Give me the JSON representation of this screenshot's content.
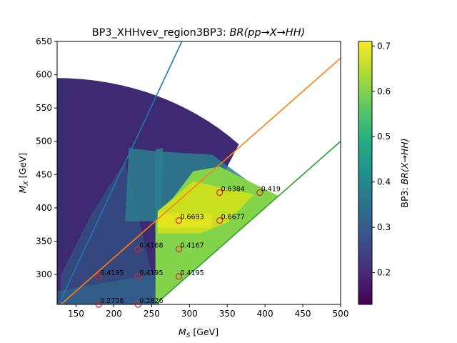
{
  "chart_data": {
    "type": "heatmap",
    "title": "BP3_XHHvev_region3BP3: BR(pp→X→HH)",
    "title_prefix": "BP3_XHHvev_region3BP3: ",
    "title_math": "BR(pp→X→HH)",
    "xlabel": "M_S [GeV]",
    "xlabel_main": "M",
    "xlabel_sub": "S",
    "xlabel_unit": " [GeV]",
    "ylabel": "M_X [GeV]",
    "ylabel_main": "M",
    "ylabel_sub": "X",
    "ylabel_unit": " [GeV]",
    "xlim": [
      125,
      500
    ],
    "ylim": [
      255,
      650
    ],
    "xticks": [
      "150",
      "200",
      "250",
      "300",
      "350",
      "400",
      "450",
      "500"
    ],
    "yticks": [
      "300",
      "350",
      "400",
      "450",
      "500",
      "550",
      "600",
      "650"
    ],
    "colorbar": {
      "label": "BP3: BR(X→HH)",
      "label_prefix": "BP3: ",
      "label_math": "BR(X→HH)",
      "range": [
        0.13,
        0.71
      ],
      "ticks": [
        "0.2",
        "0.3",
        "0.4",
        "0.5",
        "0.6",
        "0.7"
      ],
      "colormap": "viridis"
    },
    "lines": [
      {
        "color": "#1f77b4",
        "x": [
          125,
          290
        ],
        "y": [
          250,
          650
        ]
      },
      {
        "color": "#ff7f0e",
        "x": [
          125,
          500
        ],
        "y": [
          250,
          625
        ]
      },
      {
        "color": "#2ca02c",
        "x": [
          250,
          500
        ],
        "y": [
          250,
          500
        ]
      }
    ],
    "points": [
      {
        "x": 180,
        "y": 255,
        "label": "0.2756"
      },
      {
        "x": 232,
        "y": 255,
        "label": "0.2826"
      },
      {
        "x": 180,
        "y": 297,
        "label": "0.4195"
      },
      {
        "x": 232,
        "y": 297,
        "label": "0.4195"
      },
      {
        "x": 286,
        "y": 297,
        "label": "0.4195"
      },
      {
        "x": 232,
        "y": 338,
        "label": "0.4168"
      },
      {
        "x": 286,
        "y": 338,
        "label": "0.4167"
      },
      {
        "x": 286,
        "y": 381,
        "label": "0.6693"
      },
      {
        "x": 340,
        "y": 381,
        "label": "0.6677"
      },
      {
        "x": 340,
        "y": 423,
        "label": "0.6384"
      },
      {
        "x": 393,
        "y": 423,
        "label": "0.419"
      }
    ],
    "marker_color": "#d62728"
  }
}
